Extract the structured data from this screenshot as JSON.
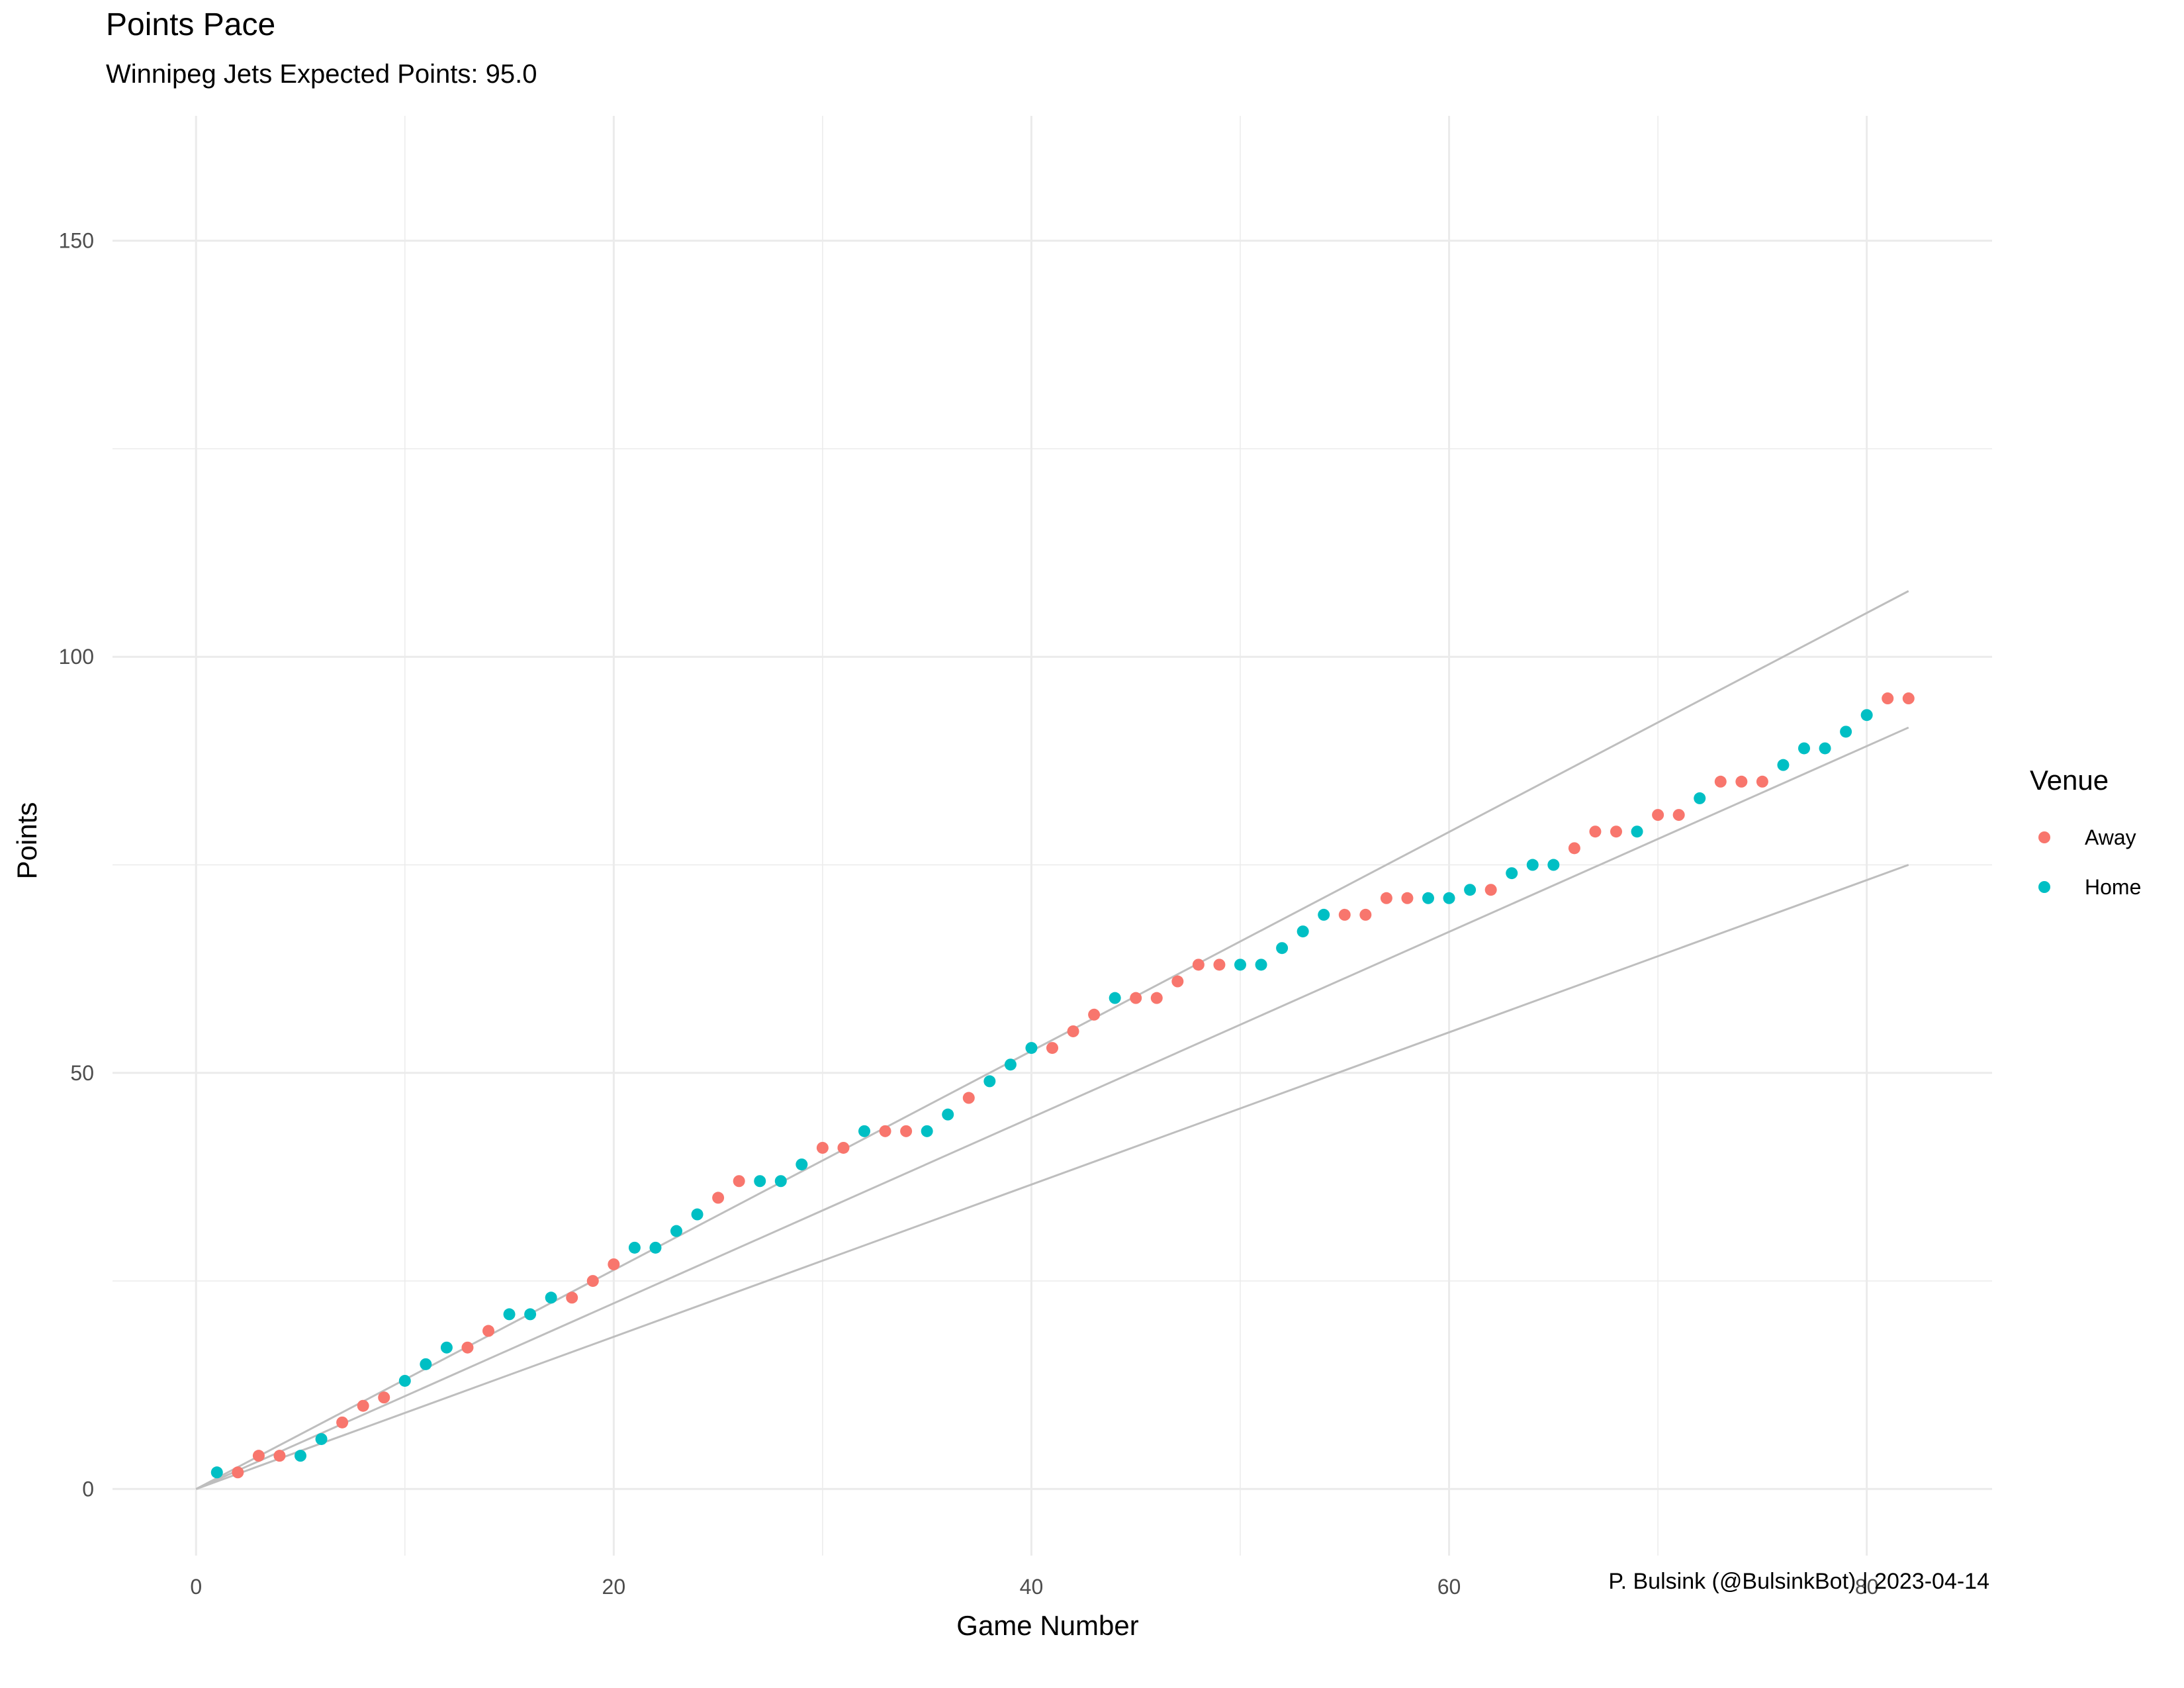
{
  "chart_data": {
    "type": "scatter",
    "title": "Points Pace",
    "subtitle": "Winnipeg Jets Expected Points: 95.0",
    "xlabel": "Game Number",
    "ylabel": "Points",
    "caption": "P. Bulsink (@BulsinkBot) | 2023-04-14",
    "xlim": [
      -4,
      86
    ],
    "ylim": [
      -8,
      165
    ],
    "x_ticks": [
      0,
      20,
      40,
      60,
      80
    ],
    "y_ticks": [
      0,
      50,
      100,
      150
    ],
    "grid": true,
    "legend": {
      "title": "Venue",
      "placement": "right",
      "entries": [
        {
          "label": "Away",
          "color": "#F8766D"
        },
        {
          "label": "Home",
          "color": "#00BFC4"
        }
      ]
    },
    "reference_lines": [
      {
        "x": [
          0,
          82
        ],
        "y": [
          0,
          107.9
        ]
      },
      {
        "x": [
          0,
          82
        ],
        "y": [
          0,
          91.5
        ]
      },
      {
        "x": [
          0,
          82
        ],
        "y": [
          0,
          75.0
        ]
      }
    ],
    "reference_line_color": "#BEBEBE",
    "series": [
      {
        "name": "Away",
        "color": "#F8766D",
        "points": [
          [
            2,
            2
          ],
          [
            3,
            4
          ],
          [
            4,
            4
          ],
          [
            7,
            8
          ],
          [
            8,
            10
          ],
          [
            9,
            11
          ],
          [
            13,
            17
          ],
          [
            14,
            19
          ],
          [
            18,
            23
          ],
          [
            19,
            25
          ],
          [
            20,
            27
          ],
          [
            25,
            35
          ],
          [
            26,
            37
          ],
          [
            30,
            41
          ],
          [
            31,
            41
          ],
          [
            33,
            43
          ],
          [
            34,
            43
          ],
          [
            37,
            47
          ],
          [
            41,
            53
          ],
          [
            42,
            55
          ],
          [
            43,
            57
          ],
          [
            45,
            59
          ],
          [
            46,
            59
          ],
          [
            47,
            61
          ],
          [
            48,
            63
          ],
          [
            49,
            63
          ],
          [
            55,
            69
          ],
          [
            56,
            69
          ],
          [
            57,
            71
          ],
          [
            58,
            71
          ],
          [
            62,
            72
          ],
          [
            66,
            77
          ],
          [
            67,
            79
          ],
          [
            68,
            79
          ],
          [
            70,
            81
          ],
          [
            71,
            81
          ],
          [
            73,
            85
          ],
          [
            74,
            85
          ],
          [
            75,
            85
          ],
          [
            81,
            95
          ],
          [
            82,
            95
          ]
        ]
      },
      {
        "name": "Home",
        "color": "#00BFC4",
        "points": [
          [
            1,
            2
          ],
          [
            5,
            4
          ],
          [
            6,
            6
          ],
          [
            10,
            13
          ],
          [
            11,
            15
          ],
          [
            12,
            17
          ],
          [
            15,
            21
          ],
          [
            16,
            21
          ],
          [
            17,
            23
          ],
          [
            21,
            29
          ],
          [
            22,
            29
          ],
          [
            23,
            31
          ],
          [
            24,
            33
          ],
          [
            27,
            37
          ],
          [
            28,
            37
          ],
          [
            29,
            39
          ],
          [
            32,
            43
          ],
          [
            35,
            43
          ],
          [
            36,
            45
          ],
          [
            38,
            49
          ],
          [
            39,
            51
          ],
          [
            40,
            53
          ],
          [
            44,
            59
          ],
          [
            50,
            63
          ],
          [
            51,
            63
          ],
          [
            52,
            65
          ],
          [
            53,
            67
          ],
          [
            54,
            69
          ],
          [
            59,
            71
          ],
          [
            60,
            71
          ],
          [
            61,
            72
          ],
          [
            63,
            74
          ],
          [
            64,
            75
          ],
          [
            65,
            75
          ],
          [
            69,
            79
          ],
          [
            72,
            83
          ],
          [
            76,
            87
          ],
          [
            77,
            89
          ],
          [
            78,
            89
          ],
          [
            79,
            91
          ],
          [
            80,
            93
          ]
        ]
      }
    ]
  }
}
